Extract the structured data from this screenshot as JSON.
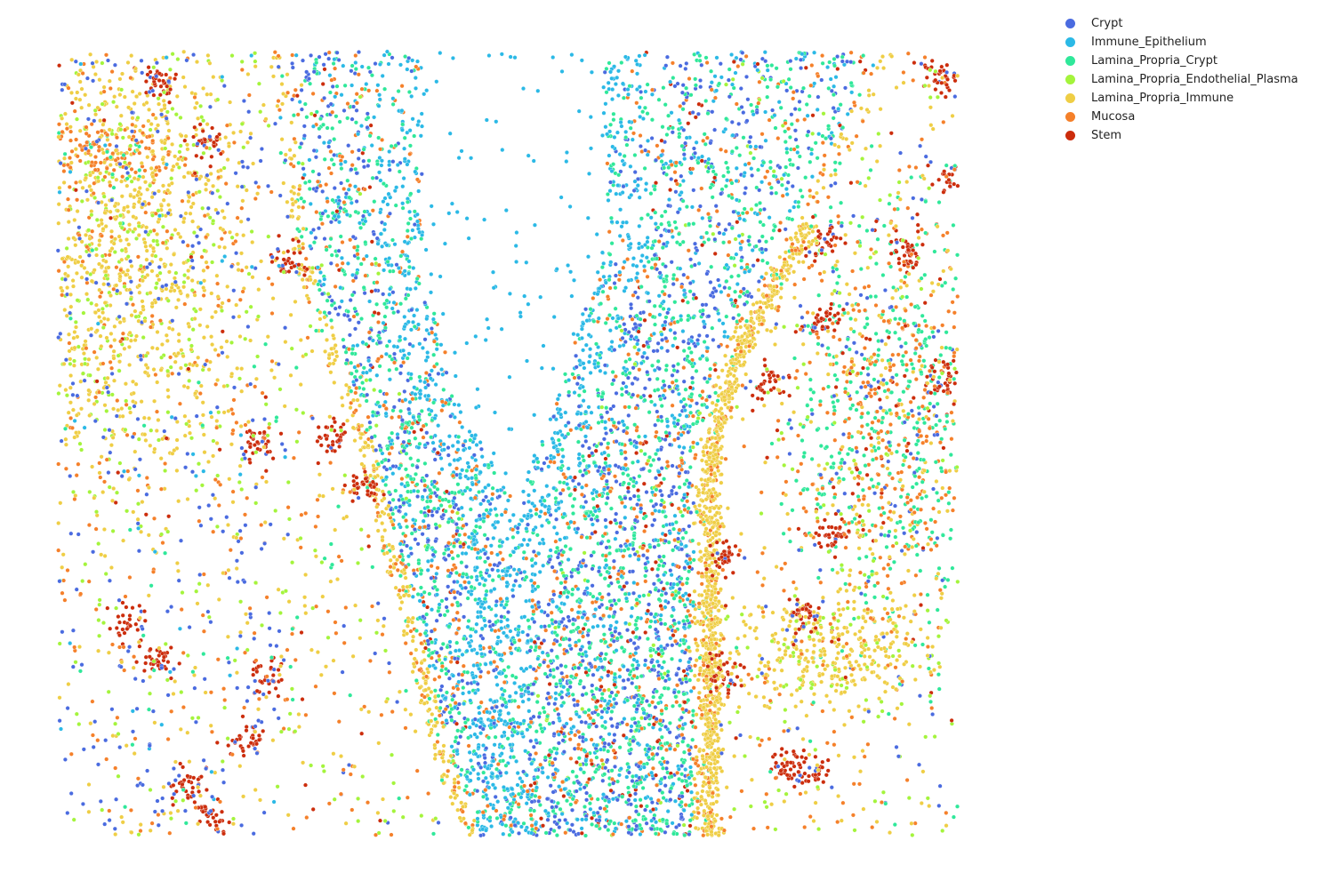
{
  "chart_data": {
    "type": "scatter",
    "title": "",
    "xlabel": "",
    "ylabel": "",
    "axes_visible": false,
    "legend_position": "top-right",
    "series": [
      {
        "name": "Crypt",
        "color": "#4a6be0"
      },
      {
        "name": "Immune_Epithelium",
        "color": "#2bb9e6"
      },
      {
        "name": "Lamina_Propria_Crypt",
        "color": "#2fe89a"
      },
      {
        "name": "Lamina_Propria_Endothelial_Plasma",
        "color": "#a4f43c"
      },
      {
        "name": "Lamina_Propria_Immune",
        "color": "#efce45"
      },
      {
        "name": "Mucosa",
        "color": "#f5802a"
      },
      {
        "name": "Stem",
        "color": "#cc2d0c"
      }
    ]
  }
}
